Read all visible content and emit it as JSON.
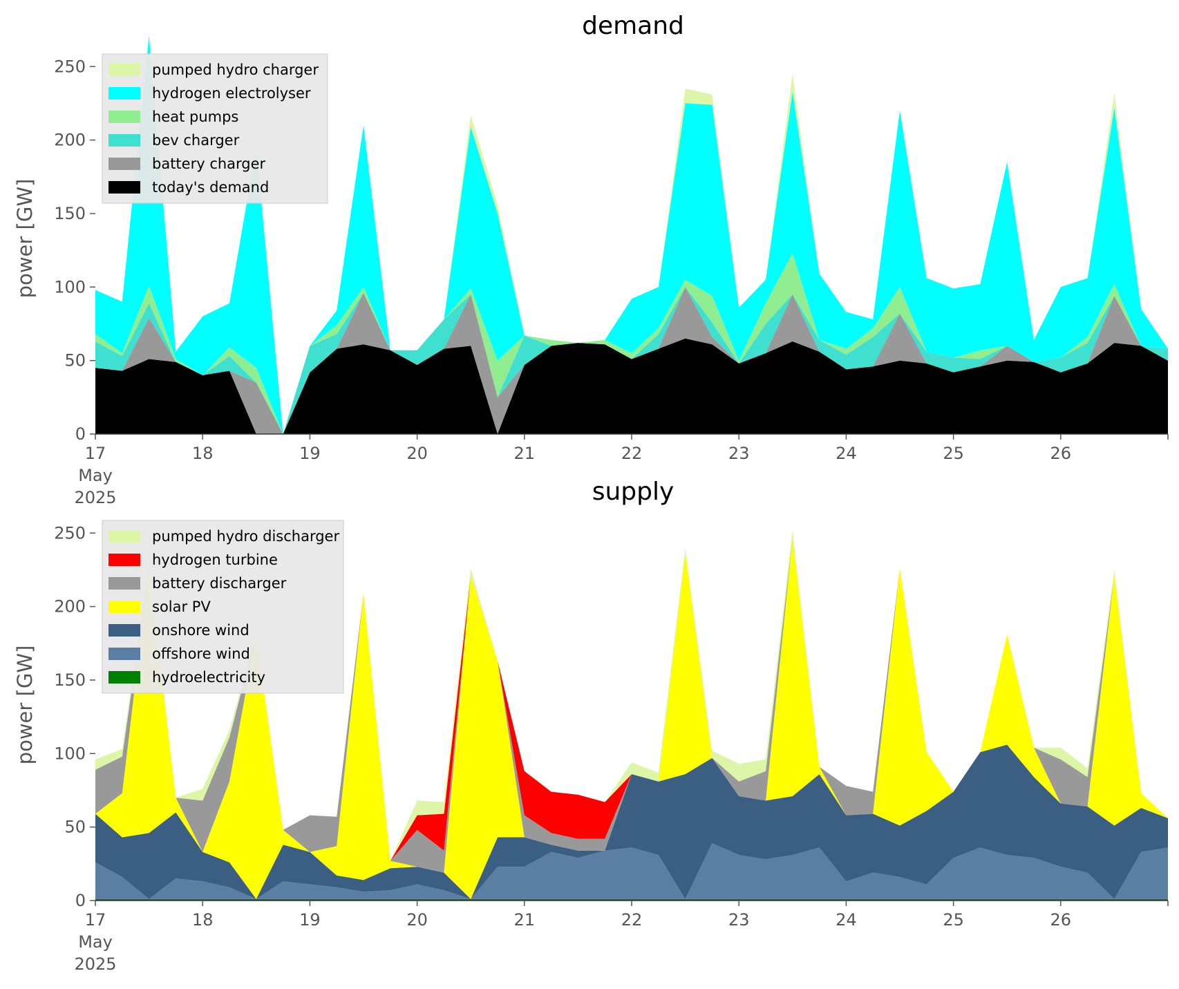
{
  "chart_data": [
    {
      "type": "area",
      "title": "demand",
      "ylabel": "power [GW]",
      "xlabel": "",
      "ylim": [
        0,
        260
      ],
      "xlim": [
        17,
        27
      ],
      "yticks": [
        0,
        50,
        100,
        150,
        200,
        250
      ],
      "xtick_labels": [
        "17",
        "18",
        "19",
        "20",
        "21",
        "22",
        "23",
        "24",
        "25",
        "26"
      ],
      "xtick_sublabel": [
        "May",
        "2025"
      ],
      "legend_position": "upper-left",
      "x": [
        17.0,
        17.25,
        17.5,
        17.75,
        18.0,
        18.25,
        18.5,
        18.75,
        19.0,
        19.25,
        19.5,
        19.75,
        20.0,
        20.25,
        20.5,
        20.75,
        21.0,
        21.25,
        21.5,
        21.75,
        22.0,
        22.25,
        22.5,
        22.75,
        23.0,
        23.25,
        23.5,
        23.75,
        24.0,
        24.25,
        24.5,
        24.75,
        25.0,
        25.25,
        25.5,
        25.75,
        26.0,
        26.25,
        26.5,
        26.75,
        27.0
      ],
      "series": [
        {
          "name": "today's demand",
          "color": "#000000",
          "values": [
            45,
            43,
            51,
            49,
            40,
            43,
            0,
            0,
            42,
            58,
            61,
            57,
            47,
            58,
            60,
            0,
            47,
            60,
            62,
            61,
            51,
            58,
            65,
            61,
            48,
            55,
            63,
            56,
            44,
            46,
            50,
            48,
            42,
            46,
            50,
            49,
            42,
            48,
            62,
            60,
            50
          ]
        },
        {
          "name": "battery charger",
          "color": "#999999",
          "values": [
            0,
            0,
            28,
            0,
            0,
            0,
            35,
            0,
            0,
            0,
            35,
            0,
            0,
            0,
            35,
            25,
            0,
            0,
            0,
            0,
            0,
            0,
            35,
            5,
            0,
            0,
            32,
            0,
            0,
            0,
            32,
            0,
            0,
            0,
            10,
            0,
            0,
            0,
            32,
            0,
            0
          ]
        },
        {
          "name": "bev charger",
          "color": "#40e0d0",
          "values": [
            18,
            10,
            10,
            0,
            0,
            10,
            0,
            0,
            18,
            10,
            0,
            0,
            10,
            20,
            0,
            0,
            20,
            0,
            0,
            0,
            0,
            10,
            0,
            10,
            0,
            20,
            0,
            8,
            10,
            20,
            0,
            8,
            10,
            5,
            0,
            0,
            10,
            14,
            0,
            0,
            8
          ]
        },
        {
          "name": "heat pumps",
          "color": "#90ee90",
          "values": [
            5,
            2,
            12,
            2,
            0,
            6,
            10,
            0,
            0,
            6,
            4,
            0,
            0,
            0,
            4,
            25,
            0,
            4,
            0,
            3,
            4,
            4,
            5,
            18,
            2,
            14,
            28,
            0,
            4,
            6,
            18,
            0,
            0,
            6,
            0,
            0,
            0,
            4,
            8,
            0,
            0
          ]
        },
        {
          "name": "hydrogen electrolyser",
          "color": "#00ffff",
          "values": [
            30,
            35,
            170,
            5,
            40,
            30,
            150,
            0,
            0,
            10,
            110,
            0,
            0,
            0,
            110,
            100,
            0,
            0,
            0,
            0,
            37,
            28,
            120,
            130,
            36,
            16,
            110,
            45,
            25,
            6,
            120,
            50,
            47,
            45,
            125,
            15,
            48,
            40,
            120,
            25,
            0
          ]
        },
        {
          "name": "pumped hydro charger",
          "color": "#dcf5a6",
          "values": [
            0,
            0,
            0,
            0,
            0,
            0,
            0,
            0,
            0,
            0,
            0,
            0,
            0,
            0,
            8,
            6,
            0,
            0,
            0,
            0,
            0,
            0,
            10,
            7,
            0,
            0,
            12,
            0,
            0,
            0,
            0,
            0,
            0,
            0,
            0,
            0,
            0,
            0,
            10,
            0,
            0
          ]
        }
      ]
    },
    {
      "type": "area",
      "title": "supply",
      "ylabel": "power [GW]",
      "xlabel": "",
      "ylim": [
        0,
        260
      ],
      "xlim": [
        17,
        27
      ],
      "yticks": [
        0,
        50,
        100,
        150,
        200,
        250
      ],
      "xtick_labels": [
        "17",
        "18",
        "19",
        "20",
        "21",
        "22",
        "23",
        "24",
        "25",
        "26"
      ],
      "xtick_sublabel": [
        "May",
        "2025"
      ],
      "legend_position": "upper-left",
      "x": [
        17.0,
        17.25,
        17.5,
        17.75,
        18.0,
        18.25,
        18.5,
        18.75,
        19.0,
        19.25,
        19.5,
        19.75,
        20.0,
        20.25,
        20.5,
        20.75,
        21.0,
        21.25,
        21.5,
        21.75,
        22.0,
        22.25,
        22.5,
        22.75,
        23.0,
        23.25,
        23.5,
        23.75,
        24.0,
        24.25,
        24.5,
        24.75,
        25.0,
        25.25,
        25.5,
        25.75,
        26.0,
        26.25,
        26.5,
        26.75,
        27.0
      ],
      "series": [
        {
          "name": "hydroelectricity",
          "color": "#008000",
          "values": [
            1,
            1,
            1,
            1,
            1,
            1,
            1,
            1,
            1,
            1,
            1,
            1,
            1,
            1,
            1,
            1,
            1,
            1,
            1,
            1,
            1,
            1,
            1,
            1,
            1,
            1,
            1,
            1,
            1,
            1,
            1,
            1,
            1,
            1,
            1,
            1,
            1,
            1,
            1,
            1,
            1
          ]
        },
        {
          "name": "offshore wind",
          "color": "#5b7fa3",
          "values": [
            25,
            15,
            0,
            14,
            12,
            8,
            0,
            12,
            10,
            8,
            5,
            6,
            10,
            6,
            0,
            22,
            22,
            32,
            28,
            33,
            35,
            30,
            0,
            38,
            30,
            27,
            30,
            35,
            12,
            18,
            15,
            10,
            28,
            35,
            30,
            28,
            22,
            18,
            0,
            32,
            35
          ]
        },
        {
          "name": "onshore wind",
          "color": "#3b5f82",
          "values": [
            33,
            27,
            45,
            45,
            20,
            17,
            0,
            25,
            22,
            8,
            8,
            15,
            12,
            12,
            0,
            20,
            20,
            5,
            5,
            0,
            50,
            50,
            85,
            58,
            40,
            40,
            40,
            50,
            45,
            40,
            35,
            50,
            45,
            65,
            75,
            55,
            43,
            45,
            50,
            30,
            20
          ]
        },
        {
          "name": "solar PV",
          "color": "#ffff00",
          "values": [
            0,
            30,
            180,
            10,
            0,
            55,
            180,
            10,
            0,
            20,
            195,
            5,
            0,
            0,
            220,
            120,
            0,
            0,
            0,
            0,
            0,
            0,
            150,
            0,
            0,
            0,
            175,
            5,
            0,
            0,
            175,
            40,
            0,
            0,
            75,
            20,
            0,
            0,
            170,
            10,
            0
          ]
        },
        {
          "name": "battery discharger",
          "color": "#999999",
          "values": [
            30,
            25,
            0,
            0,
            35,
            30,
            0,
            0,
            25,
            20,
            0,
            0,
            25,
            15,
            0,
            0,
            15,
            8,
            8,
            8,
            0,
            0,
            0,
            0,
            10,
            20,
            0,
            0,
            20,
            15,
            0,
            0,
            0,
            0,
            0,
            0,
            30,
            20,
            0,
            0,
            0
          ]
        },
        {
          "name": "hydrogen turbine",
          "color": "#ff0000",
          "values": [
            0,
            0,
            0,
            0,
            0,
            0,
            0,
            0,
            0,
            0,
            0,
            0,
            10,
            25,
            0,
            0,
            30,
            28,
            30,
            25,
            0,
            0,
            0,
            0,
            0,
            0,
            0,
            0,
            0,
            0,
            0,
            0,
            0,
            0,
            0,
            0,
            0,
            0,
            0,
            0,
            0
          ]
        },
        {
          "name": "pumped hydro discharger",
          "color": "#dcf5a6",
          "values": [
            7,
            5,
            3,
            0,
            8,
            5,
            0,
            0,
            0,
            0,
            0,
            0,
            10,
            8,
            5,
            0,
            0,
            0,
            0,
            0,
            8,
            6,
            4,
            5,
            12,
            8,
            6,
            0,
            0,
            0,
            0,
            0,
            0,
            0,
            0,
            0,
            8,
            6,
            4,
            0,
            0
          ]
        }
      ]
    }
  ],
  "legends": [
    [
      "pumped hydro charger",
      "hydrogen electrolyser",
      "heat pumps",
      "bev charger",
      "battery charger",
      "today's demand"
    ],
    [
      "pumped hydro discharger",
      "hydrogen turbine",
      "battery discharger",
      "solar PV",
      "onshore wind",
      "offshore wind",
      "hydroelectricity"
    ]
  ]
}
